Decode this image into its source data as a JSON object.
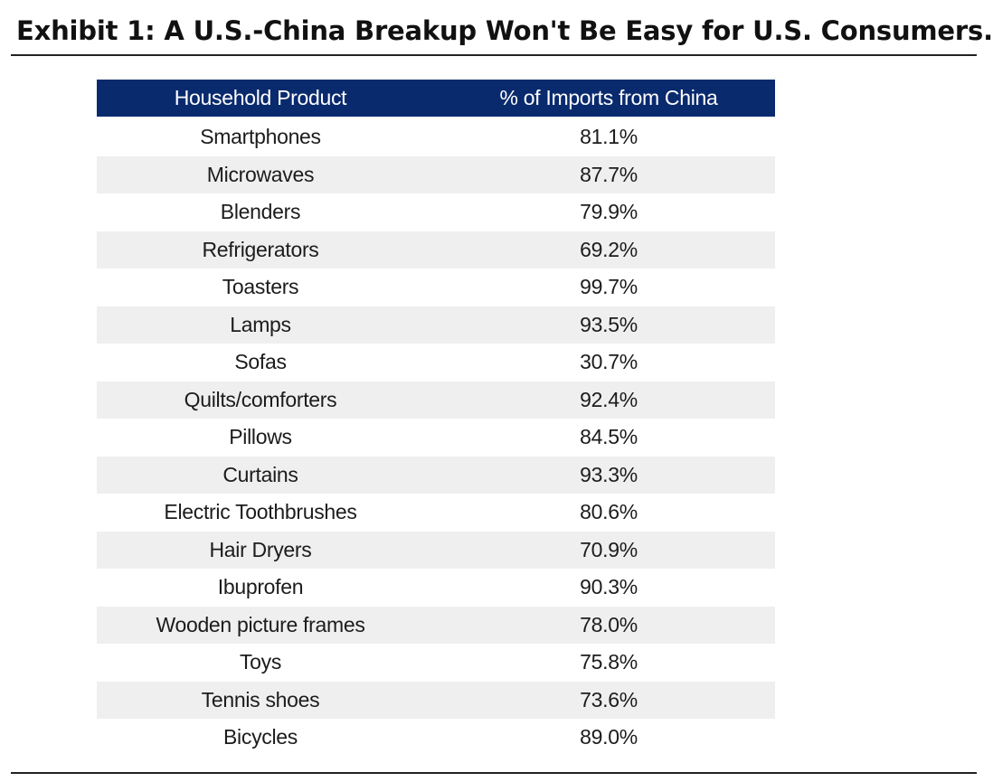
{
  "title": "Exhibit 1: A U.S.-China Breakup Won't Be Easy for U.S. Consumers.",
  "chart_data": {
    "type": "table",
    "columns": [
      "Household Product",
      "% of Imports from China"
    ],
    "rows": [
      {
        "product": "Smartphones",
        "share": "81.1%"
      },
      {
        "product": "Microwaves",
        "share": "87.7%"
      },
      {
        "product": "Blenders",
        "share": "79.9%"
      },
      {
        "product": "Refrigerators",
        "share": "69.2%"
      },
      {
        "product": "Toasters",
        "share": "99.7%"
      },
      {
        "product": "Lamps",
        "share": "93.5%"
      },
      {
        "product": "Sofas",
        "share": "30.7%"
      },
      {
        "product": "Quilts/comforters",
        "share": "92.4%"
      },
      {
        "product": "Pillows",
        "share": "84.5%"
      },
      {
        "product": "Curtains",
        "share": "93.3%"
      },
      {
        "product": "Electric Toothbrushes",
        "share": "80.6%"
      },
      {
        "product": "Hair Dryers",
        "share": "70.9%"
      },
      {
        "product": "Ibuprofen",
        "share": "90.3%"
      },
      {
        "product": "Wooden picture frames",
        "share": "78.0%"
      },
      {
        "product": "Toys",
        "share": "75.8%"
      },
      {
        "product": "Tennis shoes",
        "share": "73.6%"
      },
      {
        "product": "Bicycles",
        "share": "89.0%"
      }
    ],
    "colors": {
      "header_background": "#0a2a6e",
      "header_text": "#ffffff",
      "stripe": "#efeff0"
    }
  }
}
